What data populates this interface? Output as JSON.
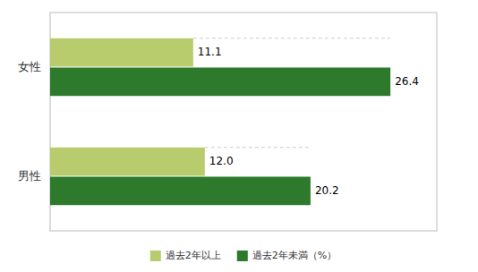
{
  "chart_data": {
    "type": "bar",
    "orientation": "horizontal",
    "categories": [
      "女性",
      "男性"
    ],
    "series": [
      {
        "name": "過去2年以上",
        "color": "#b8cc6e",
        "values": [
          11.1,
          12.0
        ],
        "value_labels": [
          "11.1",
          "12.0"
        ]
      },
      {
        "name": "過去2年未満（%）",
        "color": "#2d7a2d",
        "values": [
          26.4,
          20.2
        ]
      }
    ],
    "xlim": [
      0,
      30
    ],
    "data_labels": true,
    "tick_labels": "y",
    "legend": "bottom",
    "grid": false
  }
}
